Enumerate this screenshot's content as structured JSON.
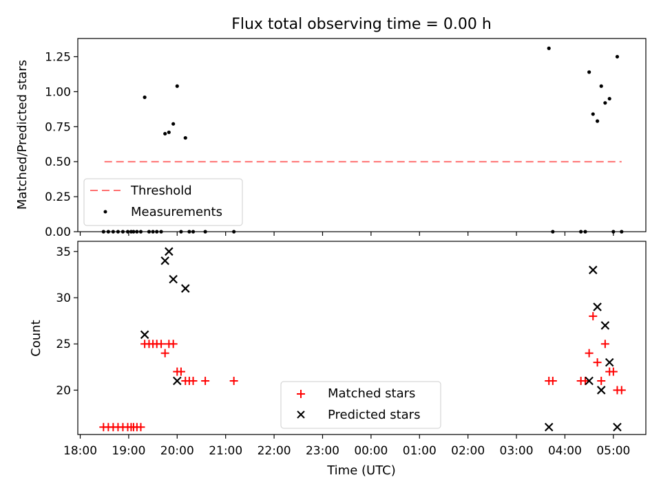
{
  "chart_data": [
    {
      "type": "scatter",
      "title": "Flux total observing time = 0.00 h",
      "ylabel": "Matched/Predicted stars",
      "ylim": [
        0,
        1.38
      ],
      "yticks": [
        0.0,
        0.25,
        0.5,
        0.75,
        1.0,
        1.25
      ],
      "ytick_labels": [
        "0.00",
        "0.25",
        "0.50",
        "0.75",
        "1.00",
        "1.25"
      ],
      "threshold": {
        "name": "Threshold",
        "value": 0.5,
        "x_start": 18.5,
        "x_end": 29.17,
        "color": "#ff7070"
      },
      "series": [
        {
          "name": "Measurements",
          "color": "#000000",
          "x": [
            18.48,
            18.58,
            18.68,
            18.78,
            18.88,
            18.98,
            19.05,
            19.1,
            19.17,
            19.25,
            19.33,
            19.42,
            19.5,
            19.58,
            19.67,
            19.75,
            19.83,
            19.92,
            20.0,
            20.08,
            20.17,
            20.25,
            20.33,
            20.58,
            21.17,
            27.67,
            27.75,
            28.33,
            28.42,
            28.5,
            28.58,
            28.67,
            28.75,
            28.83,
            28.92,
            29.0,
            29.08,
            29.17
          ],
          "y": [
            0,
            0,
            0,
            0,
            0,
            0,
            0,
            0,
            0,
            0,
            0.96,
            0,
            0,
            0,
            0,
            0.7,
            0.71,
            0.77,
            1.04,
            0,
            0.67,
            0,
            0,
            0,
            0,
            1.31,
            0,
            0,
            0,
            1.14,
            0.84,
            0.79,
            1.04,
            0.92,
            0.95,
            0,
            1.25,
            0
          ]
        }
      ],
      "legend": {
        "position": "lower-left",
        "entries": [
          "Threshold",
          "Measurements"
        ]
      }
    },
    {
      "type": "scatter",
      "xlabel": "Time (UTC)",
      "ylabel": "Count",
      "ylim": [
        15.2,
        36.1
      ],
      "yticks": [
        20,
        25,
        30,
        35
      ],
      "ytick_labels": [
        "20",
        "25",
        "30",
        "35"
      ],
      "xlim": [
        17.95,
        29.67
      ],
      "xticks": [
        18,
        19,
        20,
        21,
        22,
        23,
        24,
        25,
        26,
        27,
        28,
        29
      ],
      "xtick_labels": [
        "18:00",
        "19:00",
        "20:00",
        "21:00",
        "22:00",
        "23:00",
        "00:00",
        "01:00",
        "02:00",
        "03:00",
        "04:00",
        "05:00"
      ],
      "series": [
        {
          "name": "Matched stars",
          "marker": "plus",
          "color": "#ff0000",
          "x": [
            18.48,
            18.58,
            18.68,
            18.78,
            18.88,
            18.98,
            19.05,
            19.1,
            19.17,
            19.25,
            19.33,
            19.42,
            19.5,
            19.58,
            19.67,
            19.75,
            19.83,
            19.92,
            20.0,
            20.08,
            20.17,
            20.25,
            20.33,
            20.58,
            21.17,
            27.67,
            27.75,
            28.33,
            28.42,
            28.5,
            28.58,
            28.67,
            28.75,
            28.83,
            28.92,
            29.0,
            29.08,
            29.17
          ],
          "y": [
            16,
            16,
            16,
            16,
            16,
            16,
            16,
            16,
            16,
            16,
            25,
            25,
            25,
            25,
            25,
            24,
            25,
            25,
            22,
            22,
            21,
            21,
            21,
            21,
            21,
            21,
            21,
            21,
            21,
            24,
            28,
            23,
            21,
            25,
            22,
            22,
            20,
            20
          ]
        },
        {
          "name": "Predicted stars",
          "marker": "x",
          "color": "#000000",
          "x": [
            19.33,
            19.75,
            19.83,
            19.92,
            20.0,
            20.17,
            27.67,
            28.5,
            28.58,
            28.67,
            28.75,
            28.83,
            28.92,
            29.08
          ],
          "y": [
            26,
            34,
            35,
            32,
            21,
            31,
            16,
            21,
            33,
            29,
            20,
            27,
            23,
            16
          ]
        }
      ],
      "legend": {
        "position": "lower-center",
        "entries": [
          "Matched stars",
          "Predicted stars"
        ]
      }
    }
  ]
}
